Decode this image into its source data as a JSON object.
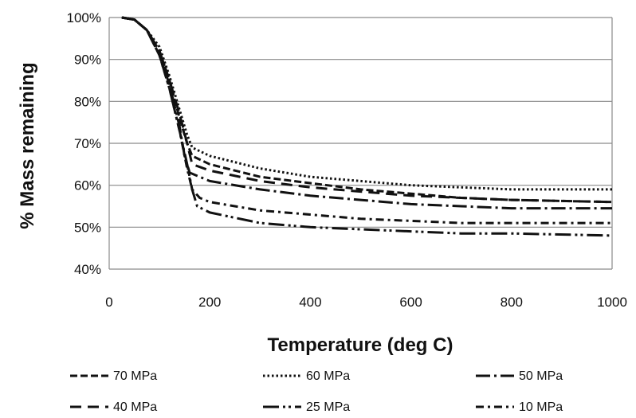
{
  "chart_data": {
    "type": "line",
    "title": "",
    "xlabel": "Temperature (deg C)",
    "ylabel": "% Mass remaining",
    "xlim": [
      0,
      1000
    ],
    "ylim": [
      40,
      100
    ],
    "x_ticks": [
      "0",
      "200",
      "400",
      "600",
      "800",
      "1000"
    ],
    "y_ticks": [
      "40%",
      "50%",
      "60%",
      "70%",
      "80%",
      "90%",
      "100%"
    ],
    "grid": "horizontal",
    "legend_position": "bottom",
    "series": [
      {
        "name": "70 MPa",
        "dash": "dashed",
        "points": [
          [
            25,
            100
          ],
          [
            50,
            99.5
          ],
          [
            75,
            97
          ],
          [
            100,
            92
          ],
          [
            120,
            85
          ],
          [
            140,
            76
          ],
          [
            155,
            70
          ],
          [
            165,
            67
          ],
          [
            200,
            65
          ],
          [
            300,
            62
          ],
          [
            400,
            60.5
          ],
          [
            500,
            59
          ],
          [
            600,
            58
          ],
          [
            700,
            57
          ],
          [
            800,
            56.5
          ],
          [
            1000,
            56
          ]
        ]
      },
      {
        "name": "60 MPa",
        "dash": "dotted",
        "points": [
          [
            25,
            100
          ],
          [
            50,
            99.5
          ],
          [
            75,
            97
          ],
          [
            100,
            93
          ],
          [
            120,
            86
          ],
          [
            140,
            78
          ],
          [
            155,
            72
          ],
          [
            165,
            69
          ],
          [
            200,
            67
          ],
          [
            300,
            64
          ],
          [
            400,
            62
          ],
          [
            500,
            61
          ],
          [
            600,
            60
          ],
          [
            700,
            59.5
          ],
          [
            800,
            59
          ],
          [
            1000,
            59
          ]
        ]
      },
      {
        "name": "50 MPa",
        "dash": "long-dash-dot",
        "points": [
          [
            25,
            100
          ],
          [
            50,
            99.5
          ],
          [
            75,
            97
          ],
          [
            100,
            91
          ],
          [
            120,
            84
          ],
          [
            140,
            74
          ],
          [
            150,
            67
          ],
          [
            160,
            63
          ],
          [
            200,
            61
          ],
          [
            300,
            59
          ],
          [
            400,
            57.5
          ],
          [
            500,
            56.5
          ],
          [
            600,
            55.5
          ],
          [
            700,
            55
          ],
          [
            800,
            54.5
          ],
          [
            1000,
            54.5
          ]
        ]
      },
      {
        "name": "40 MPa",
        "dash": "long-dash",
        "points": [
          [
            25,
            100
          ],
          [
            50,
            99.5
          ],
          [
            75,
            97
          ],
          [
            100,
            92
          ],
          [
            120,
            85
          ],
          [
            140,
            77
          ],
          [
            155,
            70
          ],
          [
            165,
            65
          ],
          [
            200,
            63.5
          ],
          [
            300,
            61
          ],
          [
            400,
            59.5
          ],
          [
            500,
            58.5
          ],
          [
            600,
            57.5
          ],
          [
            700,
            57
          ],
          [
            800,
            56.5
          ],
          [
            1000,
            56
          ]
        ]
      },
      {
        "name": "25 MPa",
        "dash": "long-dash-dot-dot",
        "points": [
          [
            25,
            100
          ],
          [
            50,
            99.5
          ],
          [
            75,
            97
          ],
          [
            100,
            91
          ],
          [
            120,
            83
          ],
          [
            140,
            73
          ],
          [
            155,
            65
          ],
          [
            165,
            59
          ],
          [
            175,
            55
          ],
          [
            200,
            53.5
          ],
          [
            300,
            51
          ],
          [
            400,
            50
          ],
          [
            500,
            49.5
          ],
          [
            600,
            49
          ],
          [
            700,
            48.5
          ],
          [
            800,
            48.5
          ],
          [
            1000,
            48
          ]
        ]
      },
      {
        "name": "10 MPa",
        "dash": "dash-dot",
        "points": [
          [
            25,
            100
          ],
          [
            50,
            99.5
          ],
          [
            75,
            97
          ],
          [
            100,
            91
          ],
          [
            120,
            83
          ],
          [
            140,
            73
          ],
          [
            155,
            64
          ],
          [
            165,
            59
          ],
          [
            180,
            57
          ],
          [
            200,
            56
          ],
          [
            300,
            54
          ],
          [
            400,
            53
          ],
          [
            500,
            52
          ],
          [
            600,
            51.5
          ],
          [
            700,
            51
          ],
          [
            800,
            51
          ],
          [
            1000,
            51
          ]
        ]
      }
    ]
  }
}
